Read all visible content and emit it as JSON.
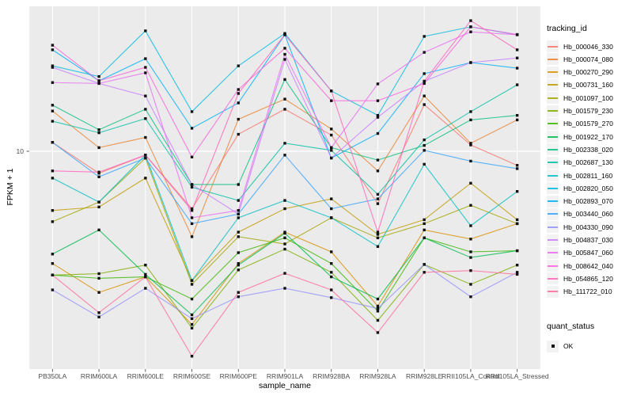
{
  "chart_data": {
    "type": "line",
    "title": "",
    "xlabel": "sample_name",
    "ylabel": "FPKM + 1",
    "y_scale": "log10",
    "ylim": [
      1,
      47
    ],
    "y_tick_labels": [
      "10"
    ],
    "grid": "major",
    "legend_position": "right",
    "legend_title": "tracking_id",
    "point_legend_title": "quant_status",
    "point_legend_label": "OK",
    "x_categories": [
      "PB350LA",
      "RRIM600LA",
      "RRIM600LE",
      "RRIM600SE",
      "RRIM600PE",
      "RRIM901LA",
      "RRIM928BA",
      "RRIM928LA",
      "RRIM928LE",
      "RRII105LA_Control",
      "RRII105LA_Stressed"
    ],
    "series": [
      {
        "name": "Hb_000046_330",
        "color": "#F8766D",
        "values": [
          11.0,
          7.9,
          9.6,
          5.4,
          12.0,
          15.7,
          11.9,
          5.7,
          16.5,
          10.7,
          8.6
        ]
      },
      {
        "name": "Hb_000074_080",
        "color": "#EA8331",
        "values": [
          15.4,
          10.4,
          11.6,
          4.0,
          14.1,
          17.5,
          12.7,
          8.1,
          18.1,
          10.9,
          14.0
        ]
      },
      {
        "name": "Hb_000270_290",
        "color": "#D89000",
        "values": [
          3.0,
          2.2,
          2.6,
          1.56,
          3.0,
          4.2,
          3.4,
          1.9,
          4.3,
          3.9,
          4.6
        ]
      },
      {
        "name": "Hb_000731_160",
        "color": "#C09B00",
        "values": [
          5.3,
          5.5,
          7.5,
          2.5,
          4.2,
          5.4,
          6.0,
          4.1,
          4.8,
          7.1,
          4.8
        ]
      },
      {
        "name": "Hb_001097_100",
        "color": "#A3A500",
        "values": [
          4.7,
          5.8,
          9.3,
          2.4,
          4.0,
          3.7,
          4.9,
          3.95,
          4.6,
          5.6,
          4.6
        ]
      },
      {
        "name": "Hb_001579_230",
        "color": "#7CAE00",
        "values": [
          2.65,
          2.69,
          2.95,
          1.5,
          2.8,
          3.5,
          2.73,
          1.63,
          2.97,
          2.4,
          2.95
        ]
      },
      {
        "name": "Hb_001579_270",
        "color": "#39B600",
        "values": [
          2.65,
          2.56,
          2.6,
          2.05,
          3.37,
          3.95,
          3.0,
          1.8,
          3.95,
          3.4,
          3.44
        ]
      },
      {
        "name": "Hb_001922_170",
        "color": "#00BB4E",
        "values": [
          3.32,
          4.3,
          2.67,
          1.73,
          2.95,
          4.15,
          2.6,
          2.05,
          3.95,
          3.2,
          3.44
        ]
      },
      {
        "name": "Hb_002338_020",
        "color": "#00BF7D",
        "values": [
          16.4,
          12.6,
          15.7,
          7.0,
          7.0,
          21.6,
          10.4,
          9.1,
          10.65,
          14.0,
          14.7
        ]
      },
      {
        "name": "Hb_002687_130",
        "color": "#00C1A3",
        "values": [
          13.8,
          12.2,
          14.2,
          6.8,
          5.9,
          10.9,
          10.1,
          6.3,
          11.3,
          15.3,
          20.4
        ]
      },
      {
        "name": "Hb_002811_160",
        "color": "#00BFC4",
        "values": [
          7.5,
          5.8,
          9.6,
          2.5,
          4.9,
          5.9,
          4.9,
          3.6,
          8.7,
          4.5,
          6.5
        ]
      },
      {
        "name": "Hb_002820_050",
        "color": "#00BAE0",
        "values": [
          25.0,
          22.3,
          36.4,
          15.3,
          25.0,
          35.4,
          19.1,
          14.7,
          34.3,
          38.0,
          34.9
        ]
      },
      {
        "name": "Hb_002893_070",
        "color": "#00B0F6",
        "values": [
          29.7,
          21.3,
          27.0,
          12.8,
          16.8,
          34.9,
          9.3,
          12.1,
          23.0,
          25.9,
          24.4
        ]
      },
      {
        "name": "Hb_003440_060",
        "color": "#35A2FF",
        "values": [
          11.0,
          7.6,
          9.3,
          4.6,
          5.1,
          9.6,
          5.4,
          6.0,
          10.1,
          9.0,
          8.3
        ]
      },
      {
        "name": "Hb_004330_090",
        "color": "#9590FF",
        "values": [
          2.26,
          1.69,
          2.3,
          1.66,
          2.1,
          2.3,
          2.08,
          1.85,
          2.97,
          2.1,
          2.73
        ]
      },
      {
        "name": "Hb_004837_030",
        "color": "#C77CFF",
        "values": [
          24.6,
          20.7,
          18.1,
          7.0,
          5.1,
          26.8,
          9.3,
          14.4,
          21.2,
          25.9,
          27.2
        ]
      },
      {
        "name": "Hb_005847_060",
        "color": "#E76BF3",
        "values": [
          20.9,
          20.7,
          23.2,
          4.9,
          5.3,
          28.3,
          10.4,
          20.6,
          28.9,
          36.0,
          34.9
        ]
      },
      {
        "name": "Hb_008642_040",
        "color": "#FA62DB",
        "values": [
          31.2,
          21.3,
          24.6,
          9.4,
          19.4,
          30.2,
          17.2,
          17.2,
          20.7,
          38.0,
          35.0
        ]
      },
      {
        "name": "Hb_054865_120",
        "color": "#FF62BC",
        "values": [
          8.1,
          8.0,
          9.6,
          5.3,
          18.6,
          34.9,
          19.1,
          4.2,
          21.2,
          40.6,
          29.7
        ]
      },
      {
        "name": "Hb_111722_010",
        "color": "#FF6A98",
        "values": [
          2.65,
          1.77,
          2.6,
          1.11,
          2.2,
          2.7,
          2.26,
          1.43,
          2.73,
          2.78,
          2.67
        ]
      }
    ]
  },
  "style_colors": {
    "panel_background": "#EBEBEB",
    "gridline": "#FFFFFF",
    "point": "#111111",
    "tick_text": "#4D4D4D",
    "legend_key_background": "#F2F2F2"
  }
}
